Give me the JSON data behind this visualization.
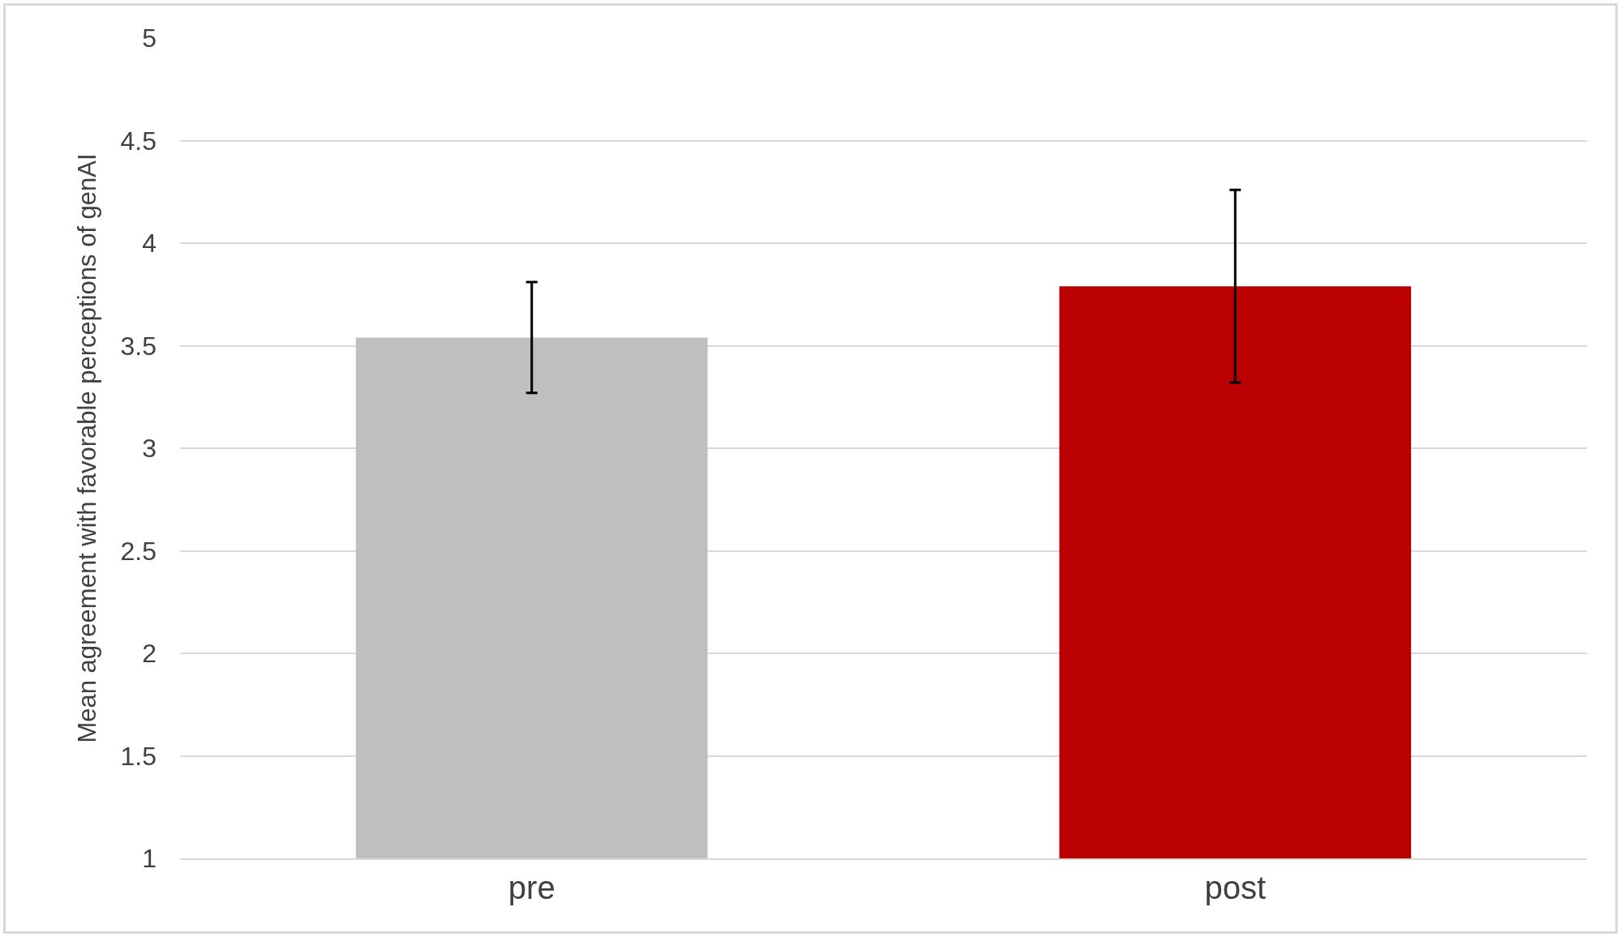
{
  "chart_data": {
    "type": "bar",
    "ylabel": "Mean agreement with favorable perceptions of genAI",
    "categories": [
      "pre",
      "post"
    ],
    "values": [
      3.54,
      3.79
    ],
    "colors": [
      "#bfbfbf",
      "#ba0000"
    ],
    "errors": [
      0.27,
      0.47
    ],
    "ylim": [
      1,
      5
    ],
    "yticks": [
      1,
      1.5,
      2,
      2.5,
      3,
      3.5,
      4,
      4.5,
      5
    ],
    "grid": "y"
  }
}
